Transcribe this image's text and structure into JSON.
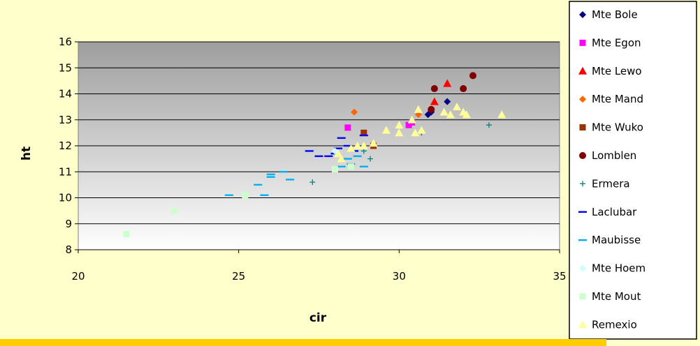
{
  "chart_data": {
    "type": "scatter",
    "title": "",
    "xlabel": "cir",
    "ylabel": "ht",
    "xlim": [
      20,
      35
    ],
    "ylim": [
      8,
      16
    ],
    "xticks": [
      "20",
      "25",
      "30",
      "35"
    ],
    "yticks": [
      "8",
      "9",
      "10",
      "11",
      "12",
      "13",
      "14",
      "15",
      "16"
    ],
    "grid": "horizontal",
    "legend_position": "right",
    "series": [
      {
        "name": "Mte Bole",
        "marker": "diamond",
        "color": "#000080",
        "points": [
          [
            30.9,
            13.2
          ],
          [
            31.0,
            13.3
          ],
          [
            31.5,
            13.7
          ]
        ]
      },
      {
        "name": "Mte Egon",
        "marker": "square",
        "color": "#FF00FF",
        "points": [
          [
            28.4,
            12.7
          ],
          [
            30.3,
            12.8
          ],
          [
            30.4,
            12.9
          ]
        ]
      },
      {
        "name": "Mte Lewo",
        "marker": "triangle",
        "color": "#FF0000",
        "points": [
          [
            31.1,
            13.7
          ],
          [
            31.5,
            14.4
          ]
        ]
      },
      {
        "name": "Mte Mand",
        "marker": "diamond",
        "color": "#FF6600",
        "points": [
          [
            28.6,
            13.3
          ],
          [
            30.6,
            13.2
          ]
        ]
      },
      {
        "name": "Mte Wuko",
        "marker": "square",
        "color": "#993300",
        "points": [
          [
            28.9,
            12.5
          ],
          [
            29.2,
            12.0
          ]
        ]
      },
      {
        "name": "Lomblen",
        "marker": "circle",
        "color": "#800000",
        "points": [
          [
            31.0,
            13.4
          ],
          [
            31.1,
            14.2
          ],
          [
            32.0,
            14.2
          ],
          [
            32.3,
            14.7
          ]
        ]
      },
      {
        "name": "Ermera",
        "marker": "plus",
        "color": "#008080",
        "points": [
          [
            27.3,
            10.6
          ],
          [
            28.9,
            11.8
          ],
          [
            29.1,
            11.5
          ],
          [
            32.8,
            12.8
          ],
          [
            30.7,
            12.5
          ]
        ]
      },
      {
        "name": "Laclubar",
        "marker": "dash",
        "color": "#0000FF",
        "points": [
          [
            27.2,
            11.8
          ],
          [
            27.5,
            11.6
          ],
          [
            27.8,
            11.6
          ],
          [
            28.1,
            11.9
          ],
          [
            28.2,
            12.3
          ],
          [
            28.4,
            12.0
          ],
          [
            28.6,
            11.8
          ],
          [
            28.9,
            12.4
          ],
          [
            28.0,
            11.7
          ]
        ]
      },
      {
        "name": "Maubisse",
        "marker": "dash",
        "color": "#00B0F0",
        "points": [
          [
            24.7,
            10.1
          ],
          [
            25.6,
            10.5
          ],
          [
            25.8,
            10.1
          ],
          [
            26.0,
            10.8
          ],
          [
            26.0,
            10.9
          ],
          [
            26.4,
            11.0
          ],
          [
            26.6,
            10.7
          ],
          [
            28.2,
            11.2
          ],
          [
            28.5,
            11.3
          ],
          [
            28.9,
            11.2
          ],
          [
            28.7,
            11.6
          ],
          [
            28.4,
            11.5
          ]
        ]
      },
      {
        "name": "Mte Hoem",
        "marker": "diamond",
        "color": "#CCFFFF",
        "points": [
          [
            28.0,
            11.8
          ]
        ]
      },
      {
        "name": "Mte Mout",
        "marker": "square",
        "color": "#CCFFCC",
        "points": [
          [
            21.5,
            8.6
          ],
          [
            23.0,
            9.5
          ],
          [
            25.2,
            10.1
          ],
          [
            28.0,
            11.1
          ],
          [
            28.5,
            11.2
          ]
        ]
      },
      {
        "name": "Remexio",
        "marker": "triangle",
        "color": "#FFFF99",
        "points": [
          [
            28.1,
            11.7
          ],
          [
            28.2,
            11.5
          ],
          [
            28.5,
            11.9
          ],
          [
            28.7,
            12.0
          ],
          [
            28.9,
            12.0
          ],
          [
            29.2,
            12.1
          ],
          [
            29.6,
            12.6
          ],
          [
            30.0,
            12.5
          ],
          [
            30.0,
            12.8
          ],
          [
            30.4,
            13.0
          ],
          [
            30.5,
            12.5
          ],
          [
            30.6,
            13.4
          ],
          [
            30.7,
            12.6
          ],
          [
            31.4,
            13.3
          ],
          [
            31.6,
            13.2
          ],
          [
            31.8,
            13.5
          ],
          [
            32.0,
            13.3
          ],
          [
            32.1,
            13.2
          ],
          [
            33.2,
            13.2
          ]
        ]
      }
    ]
  }
}
